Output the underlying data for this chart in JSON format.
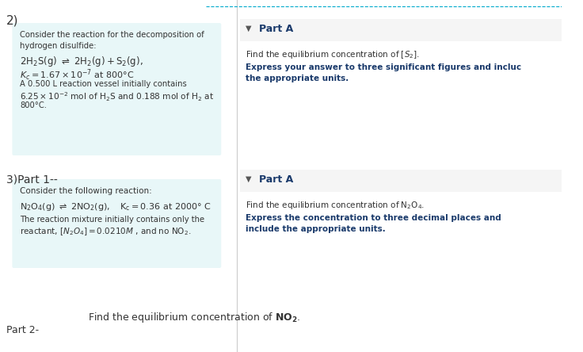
{
  "bg_color": "#ffffff",
  "box1_bg": "#e8f7f8",
  "box2_bg": "#e8f7f8",
  "part_a_bg": "#f5f5f5",
  "label_2": "2)",
  "label_3": "3)Part 1--",
  "part2_label": "Part 2-",
  "box1_lines": [
    "Consider the reaction for the decomposition of",
    "hydrogen disulfide:",
    "2H₂S(g)  ⇌  2H₂(g) + S₂(g),",
    "K⁣ = 1.67 × 10⁻⁷ at 800°C",
    "A 0.500 L reaction vessel initially contains",
    "6.25×10⁻² mol of H₂S and 0.188 mol of H₂ at",
    "800°C."
  ],
  "box2_lines": [
    "Consider the following reaction:",
    "N₂O₄(g)  ⇌  2NO₂(g),    K⁣ = 0.36 at 2000° C",
    "The reaction mixture initially contains only the",
    "reactant, [N₂O₄] = 0.0210M , and no NO₂."
  ],
  "partA1_title": "Part A",
  "partA1_line1": "Find the equilibrium concentration of [S₂].",
  "partA1_line2": "Express your answer to three significant figures and incluc",
  "partA1_line3": "the appropriate units.",
  "partA2_title": "Part A",
  "partA2_line1": "Find the equilibrium concentration of N₂O₄.",
  "partA2_line2": "Express the concentration to three decimal places and",
  "partA2_line3": "include the appropriate units.",
  "bottom_line": "Find the equilibrium concentration of NO₂.",
  "teal_line_color": "#00aacc",
  "teal_line_dashed": true,
  "divider_color": "#cccccc",
  "text_color_dark": "#333333",
  "text_color_blue": "#1a3a6b",
  "text_color_bold_blue": "#1a3a6b"
}
